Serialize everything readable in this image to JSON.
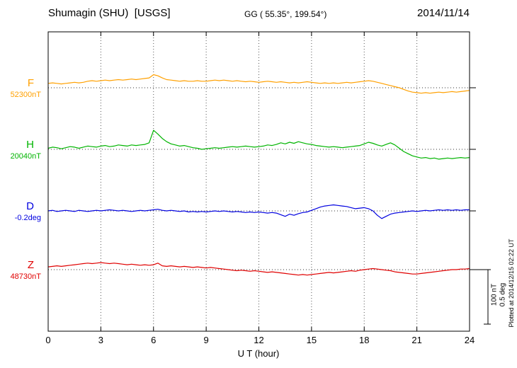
{
  "header": {
    "station": "Shumagin (SHU)  [USGS]",
    "gg": "GG ( 55.35°, 199.54°)",
    "date": "2014/11/14"
  },
  "axis": {
    "x_label": "U T (hour)",
    "x_ticks": [
      "0",
      "3",
      "6",
      "9",
      "12",
      "15",
      "18",
      "21",
      "24"
    ]
  },
  "scale_bar_text": {
    "line1": "100 nT",
    "line2": "0.5 deg"
  },
  "footer": {
    "plotted_at": "Plotted at 2014/12/15 02:22 UT"
  },
  "chart_data": {
    "type": "line",
    "title": "Shumagin (SHU) [USGS] magnetogram",
    "date": "2014/11/14",
    "xlabel": "U T (hour)",
    "x_range_hours": [
      0,
      24
    ],
    "x_tick_step_hours": 3,
    "sample_step_hours": 0.25,
    "grid": "vertical dotted lines every 3 hours; dotted horizontal baseline per trace",
    "scale_bar": {
      "nT": 100,
      "deg": 0.5
    },
    "series": [
      {
        "name": "F",
        "unit": "nT",
        "color": "#FFA000",
        "value_label": "52300nT",
        "baseline_value": 52300,
        "values": [
          8,
          9,
          8,
          7,
          8,
          9,
          10,
          9,
          10,
          12,
          13,
          12,
          13,
          14,
          13,
          14,
          15,
          14,
          15,
          16,
          15,
          16,
          17,
          18,
          24,
          22,
          18,
          15,
          14,
          13,
          12,
          13,
          12,
          12,
          13,
          12,
          12,
          13,
          14,
          13,
          14,
          13,
          12,
          13,
          12,
          11,
          12,
          11,
          10,
          11,
          12,
          11,
          10,
          11,
          10,
          9,
          10,
          9,
          10,
          11,
          10,
          9,
          8,
          9,
          8,
          9,
          8,
          9,
          10,
          9,
          10,
          11,
          12,
          13,
          12,
          10,
          8,
          6,
          4,
          2,
          0,
          -3,
          -6,
          -8,
          -9,
          -10,
          -9,
          -10,
          -9,
          -8,
          -9,
          -8,
          -7,
          -8,
          -7,
          -6,
          -5
        ]
      },
      {
        "name": "H",
        "unit": "nT",
        "color": "#00B400",
        "value_label": "20040nT",
        "baseline_value": 20040,
        "values": [
          2,
          4,
          3,
          1,
          3,
          5,
          4,
          2,
          4,
          6,
          5,
          4,
          6,
          7,
          5,
          6,
          8,
          7,
          6,
          8,
          7,
          8,
          9,
          12,
          35,
          28,
          20,
          14,
          10,
          8,
          6,
          7,
          5,
          3,
          2,
          0,
          1,
          2,
          3,
          2,
          3,
          4,
          5,
          4,
          5,
          6,
          5,
          4,
          5,
          6,
          8,
          7,
          9,
          12,
          10,
          13,
          11,
          14,
          12,
          10,
          9,
          7,
          6,
          5,
          4,
          5,
          4,
          3,
          4,
          5,
          6,
          7,
          10,
          13,
          11,
          8,
          6,
          9,
          12,
          8,
          2,
          -4,
          -8,
          -12,
          -14,
          -16,
          -15,
          -17,
          -16,
          -18,
          -17,
          -16,
          -17,
          -16,
          -15,
          -16,
          -15
        ]
      },
      {
        "name": "D",
        "unit": "deg",
        "color": "#0000E0",
        "value_label": "-0.2deg",
        "baseline_value": -0.2,
        "values": [
          0,
          0.005,
          -0.005,
          0,
          0.005,
          0,
          -0.005,
          0.005,
          0,
          -0.005,
          0,
          0.005,
          0,
          0.005,
          0.01,
          0.005,
          0,
          0.005,
          0,
          -0.005,
          0,
          0.005,
          0,
          0.005,
          0.01,
          0.015,
          0.005,
          0,
          0.005,
          0,
          -0.005,
          0,
          -0.01,
          -0.005,
          -0.01,
          -0.005,
          -0.01,
          -0.005,
          0,
          -0.005,
          0,
          -0.005,
          -0.01,
          -0.005,
          -0.01,
          -0.015,
          -0.01,
          -0.015,
          -0.01,
          -0.015,
          -0.02,
          -0.015,
          -0.02,
          -0.035,
          -0.05,
          -0.03,
          -0.04,
          -0.025,
          -0.015,
          -0.01,
          0.005,
          0.02,
          0.035,
          0.045,
          0.05,
          0.055,
          0.05,
          0.045,
          0.04,
          0.03,
          0.02,
          0.025,
          0.03,
          0.02,
          0,
          -0.04,
          -0.07,
          -0.05,
          -0.03,
          -0.02,
          -0.015,
          -0.01,
          -0.005,
          0,
          -0.005,
          0,
          0.005,
          0,
          0.005,
          0.01,
          0.005,
          0.01,
          0.005,
          0.01,
          0.005,
          0.01,
          0.01
        ]
      },
      {
        "name": "Z",
        "unit": "nT",
        "color": "#E00000",
        "value_label": "48730nT",
        "baseline_value": 48730,
        "values": [
          5,
          6,
          7,
          6,
          7,
          8,
          9,
          10,
          11,
          12,
          11,
          12,
          13,
          12,
          11,
          12,
          11,
          10,
          9,
          10,
          9,
          8,
          9,
          8,
          9,
          12,
          7,
          6,
          7,
          6,
          5,
          6,
          5,
          4,
          5,
          4,
          3,
          4,
          3,
          2,
          1,
          0,
          -1,
          -2,
          -1,
          -2,
          -3,
          -2,
          -3,
          -4,
          -5,
          -4,
          -5,
          -6,
          -7,
          -8,
          -9,
          -10,
          -9,
          -10,
          -9,
          -8,
          -7,
          -6,
          -5,
          -6,
          -5,
          -4,
          -3,
          -2,
          -3,
          -1,
          0,
          1,
          2,
          1,
          0,
          -1,
          -2,
          -4,
          -5,
          -6,
          -7,
          -8,
          -8,
          -7,
          -6,
          -5,
          -4,
          -3,
          -2,
          -1,
          0,
          0,
          1,
          1,
          2
        ]
      }
    ]
  }
}
